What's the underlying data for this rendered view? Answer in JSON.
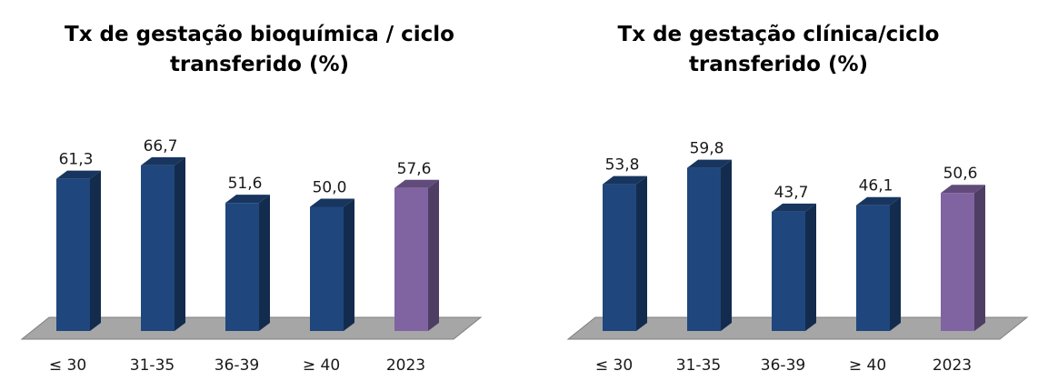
{
  "chart_data": [
    {
      "type": "bar",
      "title_lines": [
        "Tx de gestação bioquímica / ciclo",
        "transferido (%)"
      ],
      "categories": [
        "≤ 30",
        "31-35",
        "36-39",
        "≥ 40",
        "2023"
      ],
      "values": [
        61.3,
        66.7,
        51.6,
        50.0,
        57.6
      ],
      "value_labels": [
        "61,3",
        "66,7",
        "51,6",
        "50,0",
        "57,6"
      ],
      "bar_colors": [
        "#1f477d",
        "#1f477d",
        "#1f477d",
        "#1f477d",
        "#8064a2"
      ],
      "xlabel": "",
      "ylabel": "",
      "grid": false,
      "legend": "none",
      "style": "3d"
    },
    {
      "type": "bar",
      "title_lines": [
        "Tx de gestação clínica/ciclo",
        "transferido (%)"
      ],
      "categories": [
        "≤ 30",
        "31-35",
        "36-39",
        "≥ 40",
        "2023"
      ],
      "values": [
        53.8,
        59.8,
        43.7,
        46.1,
        50.6
      ],
      "value_labels": [
        "53,8",
        "59,8",
        "43,7",
        "46,1",
        "50,6"
      ],
      "bar_colors": [
        "#1f477d",
        "#1f477d",
        "#1f477d",
        "#1f477d",
        "#8064a2"
      ],
      "xlabel": "",
      "ylabel": "",
      "grid": false,
      "legend": "none",
      "style": "3d"
    }
  ],
  "colors": {
    "bar_primary": "#1f477d",
    "bar_highlight": "#8064a2",
    "floor": "#a6a6a6"
  }
}
